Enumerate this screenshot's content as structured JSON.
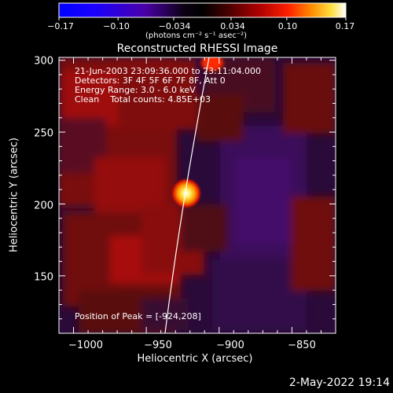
{
  "colorbar": {
    "ticks": [
      "−0.17",
      "−0.10",
      "−0.034",
      "0.034",
      "0.10",
      "0.17"
    ],
    "units": "(photons cm⁻² s⁻¹ asec⁻²)"
  },
  "plot": {
    "title": "Reconstructed RHESSI Image",
    "xlabel": "Heliocentric X (arcsec)",
    "ylabel": "Heliocentric Y (arcsec)",
    "x_ticks": [
      "−1000",
      "−950",
      "−900",
      "−850"
    ],
    "y_ticks": [
      "300",
      "250",
      "200",
      "150"
    ]
  },
  "info": {
    "time_range": "21-Jun-2003 23:09:36.000 to 23:11:04.000",
    "detectors": "Detectors: 3F 4F 5F 6F 7F 8F, Att 0",
    "energy": "Energy Range: 3.0 - 6.0 keV",
    "clean": "Clean    Total counts: 4.85E+03",
    "peak": "Position of Peak = [-924,208]"
  },
  "footer": {
    "timestamp": "2-May-2022 19:14"
  },
  "chart_data": {
    "type": "heatmap",
    "title": "Reconstructed RHESSI Image",
    "xlabel": "Heliocentric X (arcsec)",
    "ylabel": "Heliocentric Y (arcsec)",
    "xlim": [
      -1010,
      -820
    ],
    "ylim": [
      110,
      302
    ],
    "colorbar_range": [
      -0.17,
      0.17
    ],
    "peak": [
      -924,
      208
    ],
    "colors": {
      "bar_low": "#0000ff",
      "bar_mid": "#000000",
      "bar_high": "#ffffff",
      "limb": "#ffffff"
    }
  }
}
